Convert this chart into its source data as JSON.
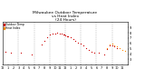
{
  "title": "Milwaukee Outdoor Temperature\nvs Heat Index\n(24 Hours)",
  "title_fontsize": 3.2,
  "legend_labels": [
    "Outdoor Temp",
    "Heat Index"
  ],
  "legend_colors": [
    "#cc0000",
    "#ff8800"
  ],
  "background_color": "#ffffff",
  "grid_color": "#999999",
  "xlim": [
    0,
    24
  ],
  "ylim": [
    20,
    100
  ],
  "tick_fontsize": 2.5,
  "x_ticks": [
    0,
    1,
    2,
    3,
    4,
    5,
    6,
    7,
    8,
    9,
    10,
    11,
    12,
    13,
    14,
    15,
    16,
    17,
    18,
    19,
    20,
    21,
    22,
    23,
    24
  ],
  "x_tick_labels": [
    "12",
    "1",
    "2",
    "3",
    "4",
    "5",
    "6",
    "7",
    "8",
    "9",
    "10",
    "11",
    "12",
    "1",
    "2",
    "3",
    "4",
    "5",
    "6",
    "7",
    "8",
    "9",
    "10",
    "11",
    ""
  ],
  "y_ticks": [
    30,
    40,
    50,
    60,
    70,
    80,
    90
  ],
  "y_tick_labels": [
    "3",
    "4",
    "5",
    "6",
    "7",
    "8",
    "9"
  ],
  "vgrid_x": [
    3,
    6,
    9,
    12,
    15,
    18,
    21
  ],
  "temp_x": [
    0.5,
    1.5,
    3.5,
    5.5,
    7.5,
    8.0,
    8.5,
    9.0,
    9.5,
    10.0,
    10.5,
    11.0,
    11.3,
    11.6,
    11.8,
    12.0,
    12.3,
    12.5,
    13.0,
    13.5,
    14.0,
    14.5,
    15.0,
    15.5,
    16.0,
    16.5,
    17.0,
    17.5,
    18.5,
    19.5,
    20.0,
    20.5,
    21.0,
    21.5,
    22.0
  ],
  "temp_y": [
    45,
    43,
    42,
    39,
    58,
    65,
    72,
    76,
    78,
    79,
    80,
    79,
    78,
    77,
    76,
    75,
    74,
    73,
    71,
    68,
    65,
    62,
    59,
    56,
    52,
    48,
    45,
    43,
    42,
    40,
    50,
    56,
    57,
    55,
    52
  ],
  "heat_x": [
    20.0,
    20.5,
    21.0,
    21.5,
    22.0,
    22.5,
    23.0,
    23.5
  ],
  "heat_y": [
    52,
    58,
    59,
    57,
    54,
    51,
    48,
    46
  ],
  "temp_color": "#cc0000",
  "heat_color": "#ff8800",
  "dot_size": 0.8
}
